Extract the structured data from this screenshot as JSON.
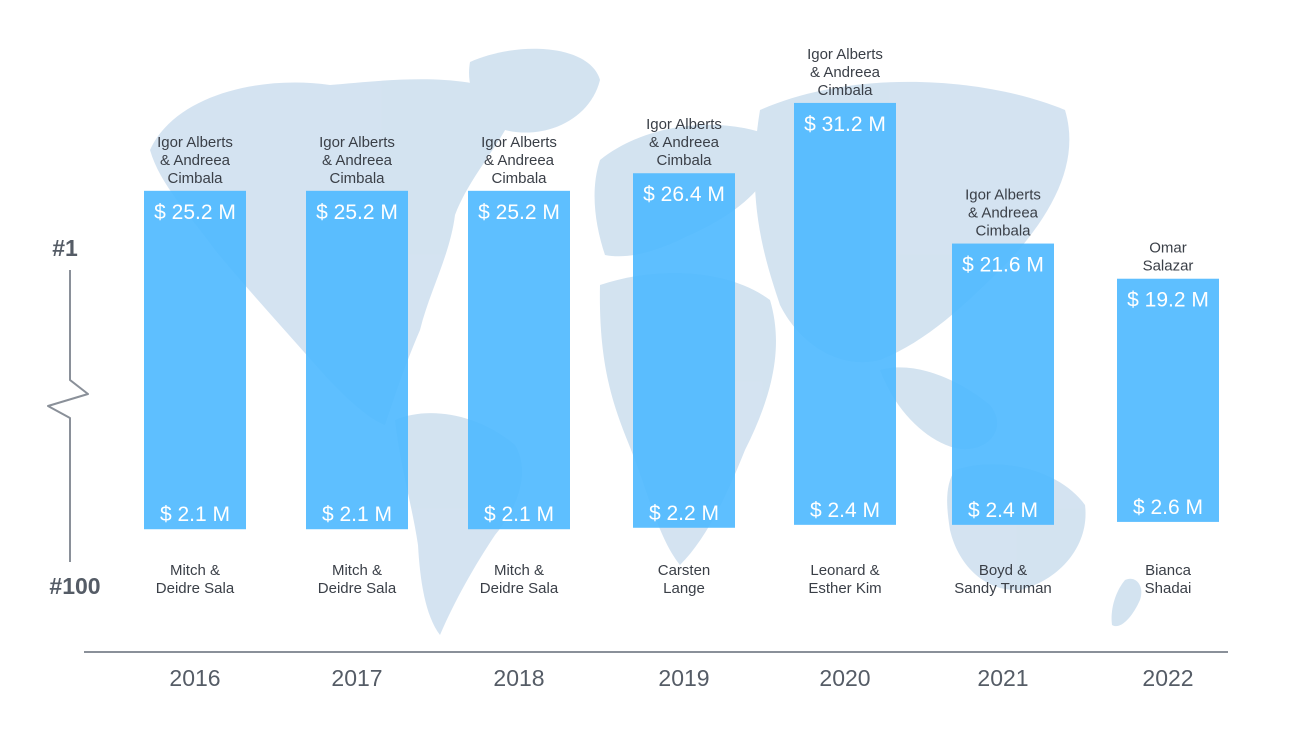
{
  "chart_data": {
    "type": "bar",
    "categories": [
      "2016",
      "2017",
      "2018",
      "2019",
      "2020",
      "2021",
      "2022"
    ],
    "series": [
      {
        "values": [
          25.2,
          25.2,
          25.2,
          26.4,
          31.2,
          21.6,
          19.2
        ]
      },
      {
        "values": [
          2.1,
          2.1,
          2.1,
          2.2,
          2.4,
          2.4,
          2.6
        ]
      }
    ],
    "value_labels": {
      "top": [
        "$ 25.2 M",
        "$ 25.2 M",
        "$ 25.2 M",
        "$ 26.4 M",
        "$ 31.2 M",
        "$ 21.6 M",
        "$ 19.2 M"
      ],
      "bottom": [
        "$ 2.1 M",
        "$ 2.1 M",
        "$ 2.1 M",
        "$ 2.2 M",
        "$ 2.4 M",
        "$ 2.4 M",
        "$ 2.6 M"
      ]
    },
    "top_names": [
      [
        "Igor Alberts",
        "& Andreea",
        "Cimbala"
      ],
      [
        "Igor Alberts",
        "& Andreea",
        "Cimbala"
      ],
      [
        "Igor Alberts",
        "& Andreea",
        "Cimbala"
      ],
      [
        "Igor Alberts",
        "& Andreea",
        "Cimbala"
      ],
      [
        "Igor Alberts",
        "& Andreea",
        "Cimbala"
      ],
      [
        "Igor Alberts",
        "& Andreea",
        "Cimbala"
      ],
      [
        "Omar",
        "Salazar"
      ]
    ],
    "bottom_names": [
      [
        "Mitch  &",
        "Deidre Sala"
      ],
      [
        "Mitch  &",
        "Deidre Sala"
      ],
      [
        "Mitch  &",
        "Deidre Sala"
      ],
      [
        "Carsten",
        "Lange"
      ],
      [
        "Leonard &",
        "Esther Kim"
      ],
      [
        "Boyd &",
        "Sandy Truman"
      ],
      [
        "Bianca",
        "Shadai"
      ]
    ],
    "rank_labels": {
      "top": "#1",
      "bottom": "#100"
    },
    "scale_break": true,
    "grid": false,
    "colors": {
      "bar": "#4db8ff",
      "map": "#cfe0ef",
      "axis": "#8a9099",
      "text": "#3a3f47"
    }
  }
}
